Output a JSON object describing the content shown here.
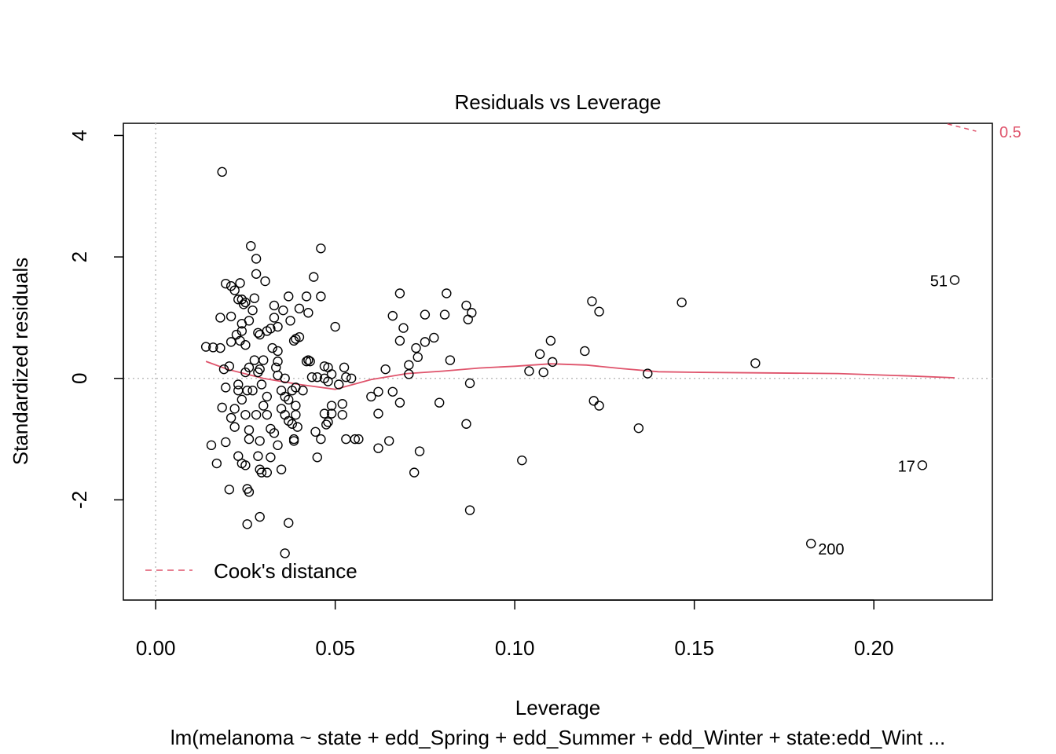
{
  "chart_data": {
    "type": "scatter",
    "title": "Residuals vs Leverage",
    "xlabel": "Leverage",
    "ylabel": "Standardized residuals",
    "subtitle": "lm(melanoma ~ state + edd_Spring + edd_Summer + edd_Winter + state:edd_Wint ...",
    "xlim": [
      -0.009,
      0.233
    ],
    "ylim": [
      -3.65,
      4.2
    ],
    "xticks": [
      0.0,
      0.05,
      0.1,
      0.15,
      0.2
    ],
    "xtick_labels": [
      "0.00",
      "0.05",
      "0.10",
      "0.15",
      "0.20"
    ],
    "yticks": [
      -2,
      0,
      2,
      4
    ],
    "ytick_labels": [
      "-2",
      "0",
      "2",
      "4"
    ],
    "reference_lines": {
      "x": 0,
      "y": 0,
      "style": "dotted"
    },
    "legend": {
      "label": "Cook's distance",
      "position": "bottom-left"
    },
    "cooks_contour": {
      "label": "0.5",
      "points": [
        [
          0.2205,
          4.19
        ],
        [
          0.2285,
          4.07
        ]
      ]
    },
    "smooth_line": {
      "x": [
        0.014,
        0.02,
        0.03,
        0.04,
        0.05,
        0.06,
        0.07,
        0.08,
        0.09,
        0.1,
        0.11,
        0.12,
        0.13,
        0.14,
        0.15,
        0.17,
        0.19,
        0.21,
        0.2225
      ],
      "y": [
        0.28,
        0.15,
        0.0,
        -0.1,
        -0.18,
        -0.02,
        0.08,
        0.12,
        0.17,
        0.2,
        0.24,
        0.22,
        0.16,
        0.11,
        0.1,
        0.09,
        0.08,
        0.04,
        0.01
      ]
    },
    "points": [
      {
        "x": 0.014,
        "y": 0.52
      },
      {
        "x": 0.016,
        "y": 0.51
      },
      {
        "x": 0.0155,
        "y": -1.1
      },
      {
        "x": 0.017,
        "y": -1.4
      },
      {
        "x": 0.0185,
        "y": 3.4
      },
      {
        "x": 0.0195,
        "y": 1.56
      },
      {
        "x": 0.018,
        "y": 1.0
      },
      {
        "x": 0.018,
        "y": 0.5
      },
      {
        "x": 0.019,
        "y": 0.15
      },
      {
        "x": 0.0195,
        "y": -0.15
      },
      {
        "x": 0.0185,
        "y": -0.48
      },
      {
        "x": 0.0195,
        "y": -1.05
      },
      {
        "x": 0.021,
        "y": 1.52
      },
      {
        "x": 0.022,
        "y": 1.45
      },
      {
        "x": 0.021,
        "y": 1.02
      },
      {
        "x": 0.021,
        "y": 0.6
      },
      {
        "x": 0.0205,
        "y": 0.2
      },
      {
        "x": 0.021,
        "y": -0.65
      },
      {
        "x": 0.022,
        "y": -0.5
      },
      {
        "x": 0.0205,
        "y": -1.83
      },
      {
        "x": 0.0225,
        "y": 0.72
      },
      {
        "x": 0.023,
        "y": -0.1
      },
      {
        "x": 0.0235,
        "y": 1.57
      },
      {
        "x": 0.023,
        "y": 1.3
      },
      {
        "x": 0.024,
        "y": 1.3
      },
      {
        "x": 0.0245,
        "y": 1.22
      },
      {
        "x": 0.024,
        "y": 0.9
      },
      {
        "x": 0.024,
        "y": 0.78
      },
      {
        "x": 0.0235,
        "y": 0.62
      },
      {
        "x": 0.023,
        "y": -0.2
      },
      {
        "x": 0.022,
        "y": -0.8
      },
      {
        "x": 0.023,
        "y": -1.28
      },
      {
        "x": 0.024,
        "y": -1.4
      },
      {
        "x": 0.025,
        "y": 1.25
      },
      {
        "x": 0.026,
        "y": 0.95
      },
      {
        "x": 0.025,
        "y": 0.55
      },
      {
        "x": 0.026,
        "y": 0.18
      },
      {
        "x": 0.025,
        "y": 0.1
      },
      {
        "x": 0.0255,
        "y": -0.2
      },
      {
        "x": 0.024,
        "y": -0.35
      },
      {
        "x": 0.025,
        "y": -0.6
      },
      {
        "x": 0.026,
        "y": -0.85
      },
      {
        "x": 0.026,
        "y": -1.0
      },
      {
        "x": 0.025,
        "y": -1.43
      },
      {
        "x": 0.0255,
        "y": -1.82
      },
      {
        "x": 0.026,
        "y": -1.87
      },
      {
        "x": 0.0255,
        "y": -2.4
      },
      {
        "x": 0.0265,
        "y": 2.18
      },
      {
        "x": 0.028,
        "y": 1.97
      },
      {
        "x": 0.028,
        "y": 1.72
      },
      {
        "x": 0.0275,
        "y": 1.32
      },
      {
        "x": 0.027,
        "y": 1.12
      },
      {
        "x": 0.0285,
        "y": 0.75
      },
      {
        "x": 0.029,
        "y": 0.72
      },
      {
        "x": 0.0275,
        "y": 0.3
      },
      {
        "x": 0.029,
        "y": 0.15
      },
      {
        "x": 0.0285,
        "y": 0.1
      },
      {
        "x": 0.027,
        "y": -0.2
      },
      {
        "x": 0.028,
        "y": -0.6
      },
      {
        "x": 0.029,
        "y": -1.03
      },
      {
        "x": 0.0285,
        "y": -1.28
      },
      {
        "x": 0.029,
        "y": -1.5
      },
      {
        "x": 0.0295,
        "y": -1.55
      },
      {
        "x": 0.029,
        "y": -2.28
      },
      {
        "x": 0.0305,
        "y": 1.6
      },
      {
        "x": 0.031,
        "y": 0.78
      },
      {
        "x": 0.032,
        "y": 0.82
      },
      {
        "x": 0.03,
        "y": 0.3
      },
      {
        "x": 0.0295,
        "y": -0.1
      },
      {
        "x": 0.031,
        "y": -0.3
      },
      {
        "x": 0.03,
        "y": -0.45
      },
      {
        "x": 0.031,
        "y": -0.6
      },
      {
        "x": 0.032,
        "y": -0.83
      },
      {
        "x": 0.033,
        "y": -0.9
      },
      {
        "x": 0.032,
        "y": -1.3
      },
      {
        "x": 0.031,
        "y": -1.55
      },
      {
        "x": 0.0325,
        "y": 0.5
      },
      {
        "x": 0.034,
        "y": 0.45
      },
      {
        "x": 0.033,
        "y": 1.2
      },
      {
        "x": 0.033,
        "y": 1.0
      },
      {
        "x": 0.034,
        "y": 0.85
      },
      {
        "x": 0.034,
        "y": 0.28
      },
      {
        "x": 0.0335,
        "y": 0.18
      },
      {
        "x": 0.034,
        "y": 0.05
      },
      {
        "x": 0.035,
        "y": -0.2
      },
      {
        "x": 0.035,
        "y": -0.5
      },
      {
        "x": 0.034,
        "y": -1.1
      },
      {
        "x": 0.035,
        "y": -1.5
      },
      {
        "x": 0.036,
        "y": -2.88
      },
      {
        "x": 0.0355,
        "y": 1.12
      },
      {
        "x": 0.037,
        "y": 1.35
      },
      {
        "x": 0.036,
        "y": 0.0
      },
      {
        "x": 0.036,
        "y": -0.3
      },
      {
        "x": 0.037,
        "y": -0.35
      },
      {
        "x": 0.036,
        "y": -0.6
      },
      {
        "x": 0.037,
        "y": -0.7
      },
      {
        "x": 0.0375,
        "y": 0.95
      },
      {
        "x": 0.038,
        "y": -0.2
      },
      {
        "x": 0.038,
        "y": -0.75
      },
      {
        "x": 0.0385,
        "y": -1.0
      },
      {
        "x": 0.037,
        "y": -2.38
      },
      {
        "x": 0.039,
        "y": 0.65
      },
      {
        "x": 0.0385,
        "y": 0.62
      },
      {
        "x": 0.039,
        "y": -0.15
      },
      {
        "x": 0.039,
        "y": -0.45
      },
      {
        "x": 0.039,
        "y": -0.6
      },
      {
        "x": 0.04,
        "y": 0.68
      },
      {
        "x": 0.04,
        "y": 1.15
      },
      {
        "x": 0.041,
        "y": -0.2
      },
      {
        "x": 0.0395,
        "y": -0.8
      },
      {
        "x": 0.0385,
        "y": -1.03
      },
      {
        "x": 0.042,
        "y": 1.35
      },
      {
        "x": 0.0425,
        "y": 1.08
      },
      {
        "x": 0.0425,
        "y": 0.3
      },
      {
        "x": 0.042,
        "y": 0.28
      },
      {
        "x": 0.043,
        "y": 0.28
      },
      {
        "x": 0.044,
        "y": 1.67
      },
      {
        "x": 0.0435,
        "y": 0.02
      },
      {
        "x": 0.045,
        "y": 0.02
      },
      {
        "x": 0.0445,
        "y": -0.88
      },
      {
        "x": 0.045,
        "y": -1.3
      },
      {
        "x": 0.046,
        "y": 2.14
      },
      {
        "x": 0.046,
        "y": 1.35
      },
      {
        "x": 0.046,
        "y": -1.0
      },
      {
        "x": 0.047,
        "y": 0.2
      },
      {
        "x": 0.048,
        "y": 0.18
      },
      {
        "x": 0.047,
        "y": 0.0
      },
      {
        "x": 0.048,
        "y": -0.05
      },
      {
        "x": 0.047,
        "y": -0.58
      },
      {
        "x": 0.048,
        "y": -0.72
      },
      {
        "x": 0.0475,
        "y": -0.76
      },
      {
        "x": 0.05,
        "y": 0.85
      },
      {
        "x": 0.049,
        "y": 0.07
      },
      {
        "x": 0.051,
        "y": -0.1
      },
      {
        "x": 0.049,
        "y": -0.45
      },
      {
        "x": 0.049,
        "y": -0.58
      },
      {
        "x": 0.052,
        "y": -0.6
      },
      {
        "x": 0.052,
        "y": -0.42
      },
      {
        "x": 0.0525,
        "y": 0.18
      },
      {
        "x": 0.053,
        "y": 0.02
      },
      {
        "x": 0.0545,
        "y": 0.0
      },
      {
        "x": 0.053,
        "y": -1.0
      },
      {
        "x": 0.0555,
        "y": -1.0
      },
      {
        "x": 0.0565,
        "y": -1.0
      },
      {
        "x": 0.06,
        "y": -0.3
      },
      {
        "x": 0.062,
        "y": -0.22
      },
      {
        "x": 0.062,
        "y": -0.58
      },
      {
        "x": 0.062,
        "y": -1.15
      },
      {
        "x": 0.064,
        "y": 0.15
      },
      {
        "x": 0.065,
        "y": -1.03
      },
      {
        "x": 0.066,
        "y": -0.22
      },
      {
        "x": 0.066,
        "y": 1.03
      },
      {
        "x": 0.068,
        "y": 1.4
      },
      {
        "x": 0.068,
        "y": 0.62
      },
      {
        "x": 0.069,
        "y": 0.83
      },
      {
        "x": 0.068,
        "y": -0.4
      },
      {
        "x": 0.0705,
        "y": 0.22
      },
      {
        "x": 0.0705,
        "y": 0.07
      },
      {
        "x": 0.072,
        "y": -1.55
      },
      {
        "x": 0.0725,
        "y": 0.5
      },
      {
        "x": 0.073,
        "y": 0.35
      },
      {
        "x": 0.0735,
        "y": -1.2
      },
      {
        "x": 0.075,
        "y": 1.05
      },
      {
        "x": 0.075,
        "y": 0.6
      },
      {
        "x": 0.0775,
        "y": 0.67
      },
      {
        "x": 0.079,
        "y": -0.4
      },
      {
        "x": 0.0805,
        "y": 1.05
      },
      {
        "x": 0.081,
        "y": 1.4
      },
      {
        "x": 0.082,
        "y": 0.3
      },
      {
        "x": 0.0865,
        "y": 1.2
      },
      {
        "x": 0.0865,
        "y": -0.75
      },
      {
        "x": 0.087,
        "y": 0.97
      },
      {
        "x": 0.088,
        "y": 1.08
      },
      {
        "x": 0.0875,
        "y": -0.08
      },
      {
        "x": 0.0875,
        "y": -2.17
      },
      {
        "x": 0.102,
        "y": -1.35
      },
      {
        "x": 0.104,
        "y": 0.12
      },
      {
        "x": 0.107,
        "y": 0.4
      },
      {
        "x": 0.108,
        "y": 0.1
      },
      {
        "x": 0.11,
        "y": 0.62
      },
      {
        "x": 0.1105,
        "y": 0.27
      },
      {
        "x": 0.1195,
        "y": 0.45
      },
      {
        "x": 0.1215,
        "y": 1.27
      },
      {
        "x": 0.122,
        "y": -0.37
      },
      {
        "x": 0.1235,
        "y": 1.1
      },
      {
        "x": 0.1235,
        "y": -0.45
      },
      {
        "x": 0.1345,
        "y": -0.82
      },
      {
        "x": 0.137,
        "y": 0.08
      },
      {
        "x": 0.1465,
        "y": 1.25
      },
      {
        "x": 0.167,
        "y": 0.25
      },
      {
        "x": 0.1825,
        "y": -2.72,
        "label": "200"
      },
      {
        "x": 0.2135,
        "y": -1.43,
        "label": "17"
      },
      {
        "x": 0.2225,
        "y": 1.62,
        "label": "51"
      }
    ]
  }
}
